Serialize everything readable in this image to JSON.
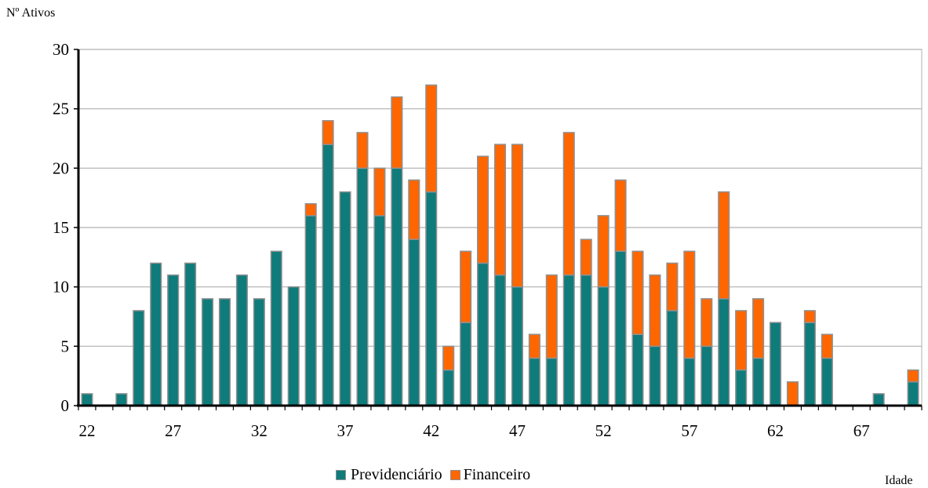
{
  "chart_data": {
    "type": "bar",
    "stacked": true,
    "ylabel": "Nº Ativos",
    "xlabel": "Idade",
    "ylim": [
      0,
      30
    ],
    "y_ticks": [
      0,
      5,
      10,
      15,
      20,
      25,
      30
    ],
    "x_tick_labels": [
      "22",
      "27",
      "32",
      "37",
      "42",
      "47",
      "52",
      "57",
      "62",
      "67"
    ],
    "grid": true,
    "legend_position": "bottom",
    "ages": [
      22,
      23,
      24,
      25,
      26,
      27,
      28,
      29,
      30,
      31,
      32,
      33,
      34,
      35,
      36,
      37,
      38,
      39,
      40,
      41,
      42,
      43,
      44,
      45,
      46,
      47,
      48,
      49,
      50,
      51,
      52,
      53,
      54,
      55,
      56,
      57,
      58,
      59,
      60,
      61,
      62,
      63,
      64,
      65,
      66,
      67,
      68,
      69,
      70
    ],
    "series": [
      {
        "name": "Previdenciário",
        "color": "#0f7b7b",
        "values": [
          1,
          0,
          1,
          8,
          12,
          11,
          12,
          9,
          9,
          11,
          9,
          13,
          10,
          16,
          22,
          18,
          20,
          16,
          20,
          14,
          18,
          3,
          7,
          12,
          11,
          10,
          4,
          4,
          11,
          11,
          10,
          13,
          6,
          5,
          8,
          4,
          5,
          9,
          3,
          4,
          7,
          0,
          7,
          4,
          0,
          0,
          1,
          0,
          2
        ]
      },
      {
        "name": "Financeiro",
        "color": "#ff6600",
        "values": [
          0,
          0,
          0,
          0,
          0,
          0,
          0,
          0,
          0,
          0,
          0,
          0,
          0,
          1,
          2,
          0,
          3,
          4,
          6,
          5,
          9,
          2,
          6,
          9,
          11,
          12,
          2,
          7,
          12,
          3,
          6,
          6,
          7,
          6,
          4,
          9,
          4,
          9,
          5,
          5,
          0,
          2,
          1,
          2,
          0,
          0,
          0,
          0,
          1
        ]
      }
    ]
  },
  "colors": {
    "bar_outline": "#909090",
    "gridline": "#b0b0b0",
    "axis": "#000000"
  }
}
